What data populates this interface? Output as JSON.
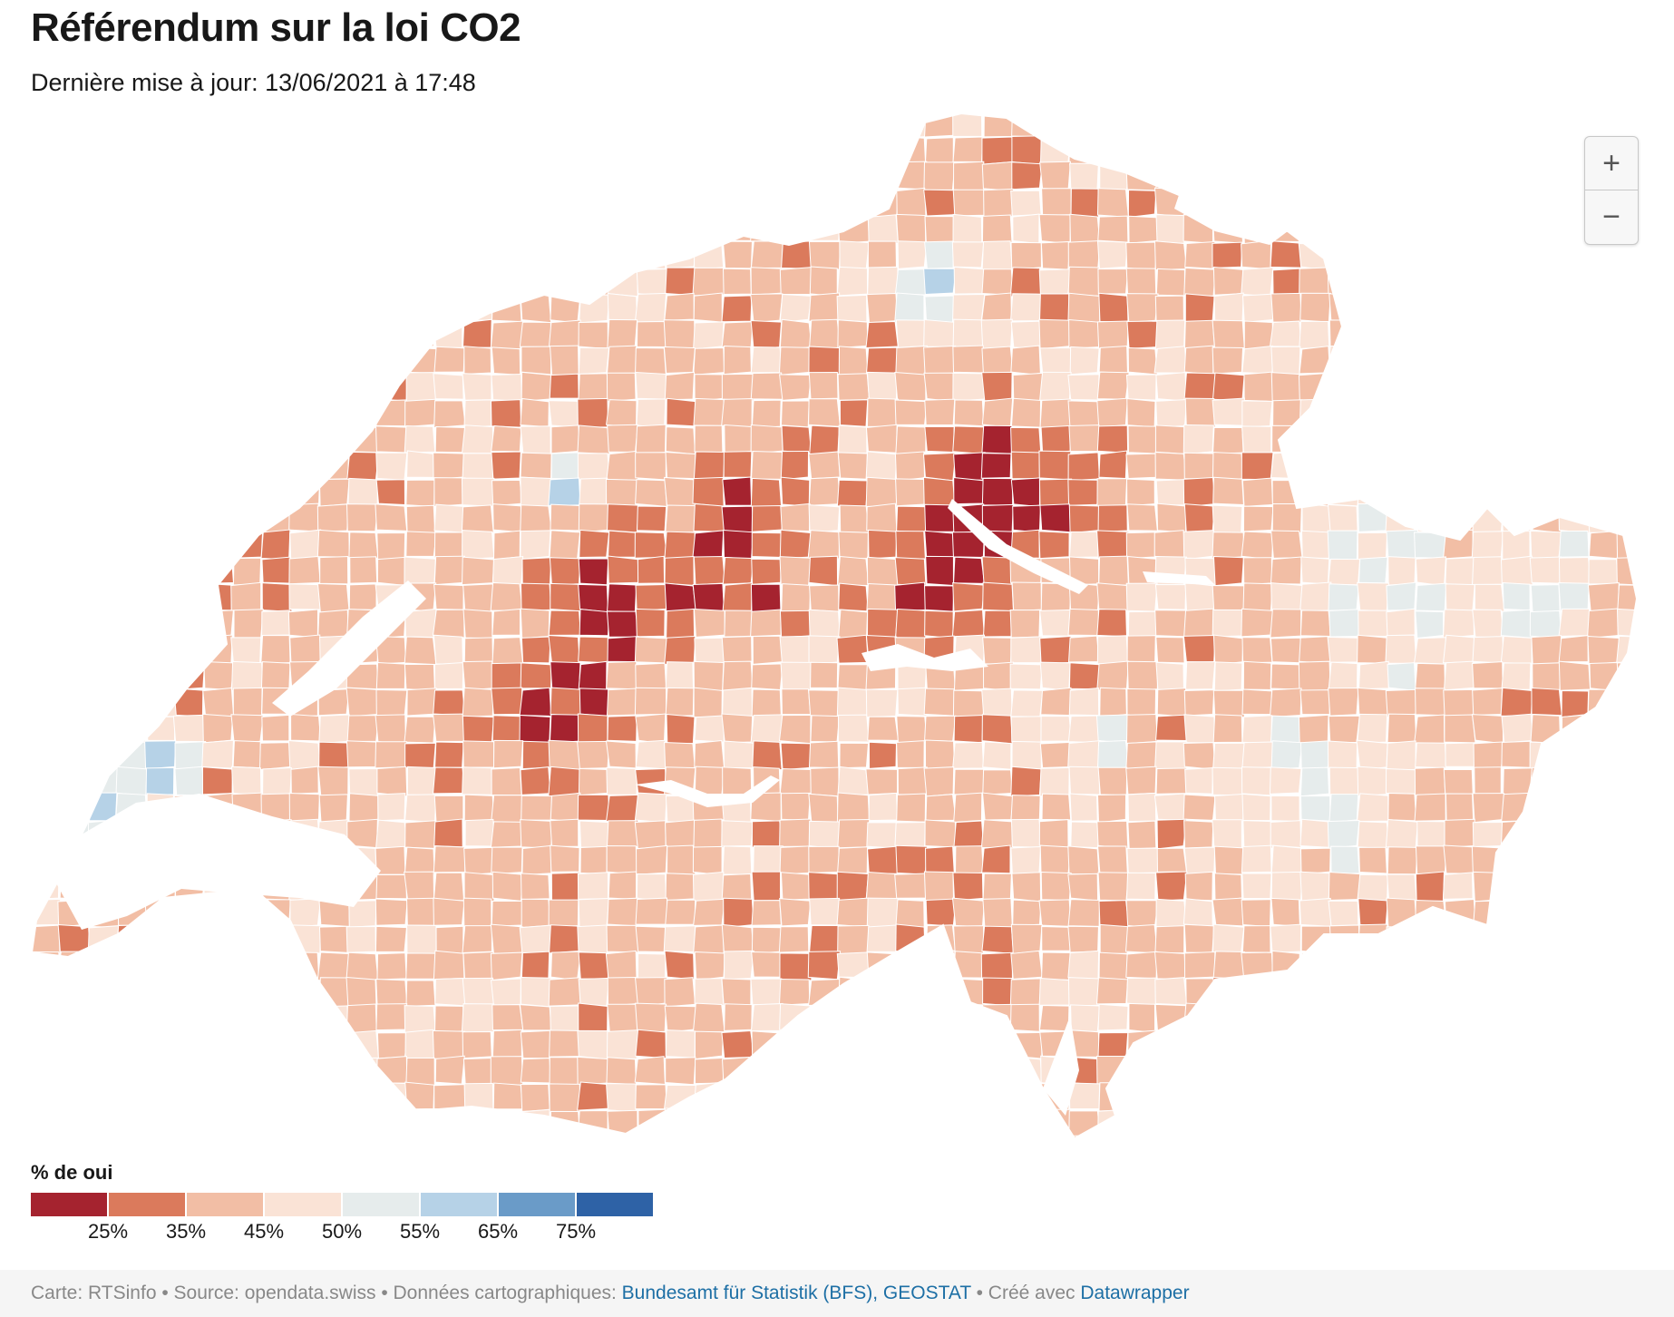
{
  "header": {
    "title": "Référendum sur la loi CO2",
    "subtitle": "Dernière mise à jour: 13/06/2021 à 17:48"
  },
  "zoom": {
    "in_label": "+",
    "out_label": "−"
  },
  "legend": {
    "title": "% de oui",
    "colors": [
      "#a5232f",
      "#db7a5c",
      "#f2bea5",
      "#fae3d6",
      "#e6ecec",
      "#b6d2e7",
      "#6a9bc8",
      "#2e62a6"
    ],
    "ticks": [
      "25%",
      "35%",
      "45%",
      "50%",
      "55%",
      "65%",
      "75%"
    ]
  },
  "footer": {
    "prefix": "Carte: RTSinfo • Source: opendata.swiss • Données cartographiques: ",
    "data_link": "Bundesamt für Statistik (BFS), GEOSTAT",
    "middle": " • Créé avec ",
    "tool_link": "Datawrapper"
  }
}
